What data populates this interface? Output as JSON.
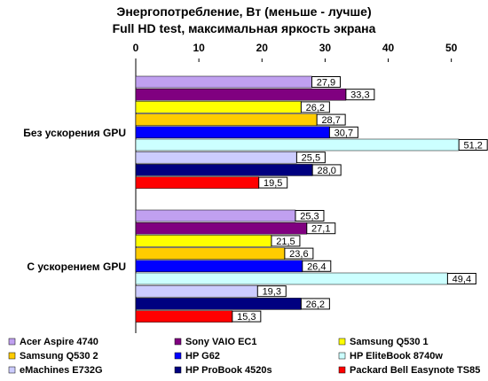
{
  "chart_data": {
    "type": "bar",
    "orientation": "horizontal",
    "title": "Энергопотребление, Вт (меньше - лучше)",
    "subtitle": "Full HD test, максимальная яркость экрана",
    "xlabel": "",
    "ylabel": "",
    "xlim": [
      0,
      53
    ],
    "ticks": [
      0,
      10,
      20,
      30,
      40,
      50
    ],
    "tick_labels": [
      "0",
      "10",
      "20",
      "30",
      "40",
      "50"
    ],
    "grid": false,
    "legend_position": "bottom",
    "categories": [
      "Без ускорения GPU",
      "С ускорением GPU"
    ],
    "series": [
      {
        "name": "Acer Aspire 4740",
        "color": "#C0A0F0",
        "values": [
          27.9,
          25.3
        ],
        "labels": [
          "27,9",
          "25,3"
        ]
      },
      {
        "name": "Sony VAIO EC1",
        "color": "#800080",
        "values": [
          33.3,
          27.1
        ],
        "labels": [
          "33,3",
          "27,1"
        ]
      },
      {
        "name": "Samsung Q530 1",
        "color": "#FFFF00",
        "values": [
          26.2,
          21.5
        ],
        "labels": [
          "26,2",
          "21,5"
        ]
      },
      {
        "name": "Samsung Q530 2",
        "color": "#FFCC00",
        "values": [
          28.7,
          23.6
        ],
        "labels": [
          "28,7",
          "23,6"
        ]
      },
      {
        "name": "HP G62",
        "color": "#0000FF",
        "values": [
          30.7,
          26.4
        ],
        "labels": [
          "30,7",
          "26,4"
        ]
      },
      {
        "name": "HP EliteBook 8740w",
        "color": "#CCFFFF",
        "values": [
          51.2,
          49.4
        ],
        "labels": [
          "51,2",
          "49,4"
        ]
      },
      {
        "name": "eMachines E732G",
        "color": "#CCCCFF",
        "values": [
          25.5,
          19.3
        ],
        "labels": [
          "25,5",
          "19,3"
        ]
      },
      {
        "name": "HP ProBook 4520s",
        "color": "#000080",
        "values": [
          28.0,
          26.2
        ],
        "labels": [
          "28,0",
          "26,2"
        ]
      },
      {
        "name": "Packard Bell Easynote TS85",
        "color": "#FF0000",
        "values": [
          19.5,
          15.3
        ],
        "labels": [
          "19,5",
          "15,3"
        ]
      }
    ]
  }
}
